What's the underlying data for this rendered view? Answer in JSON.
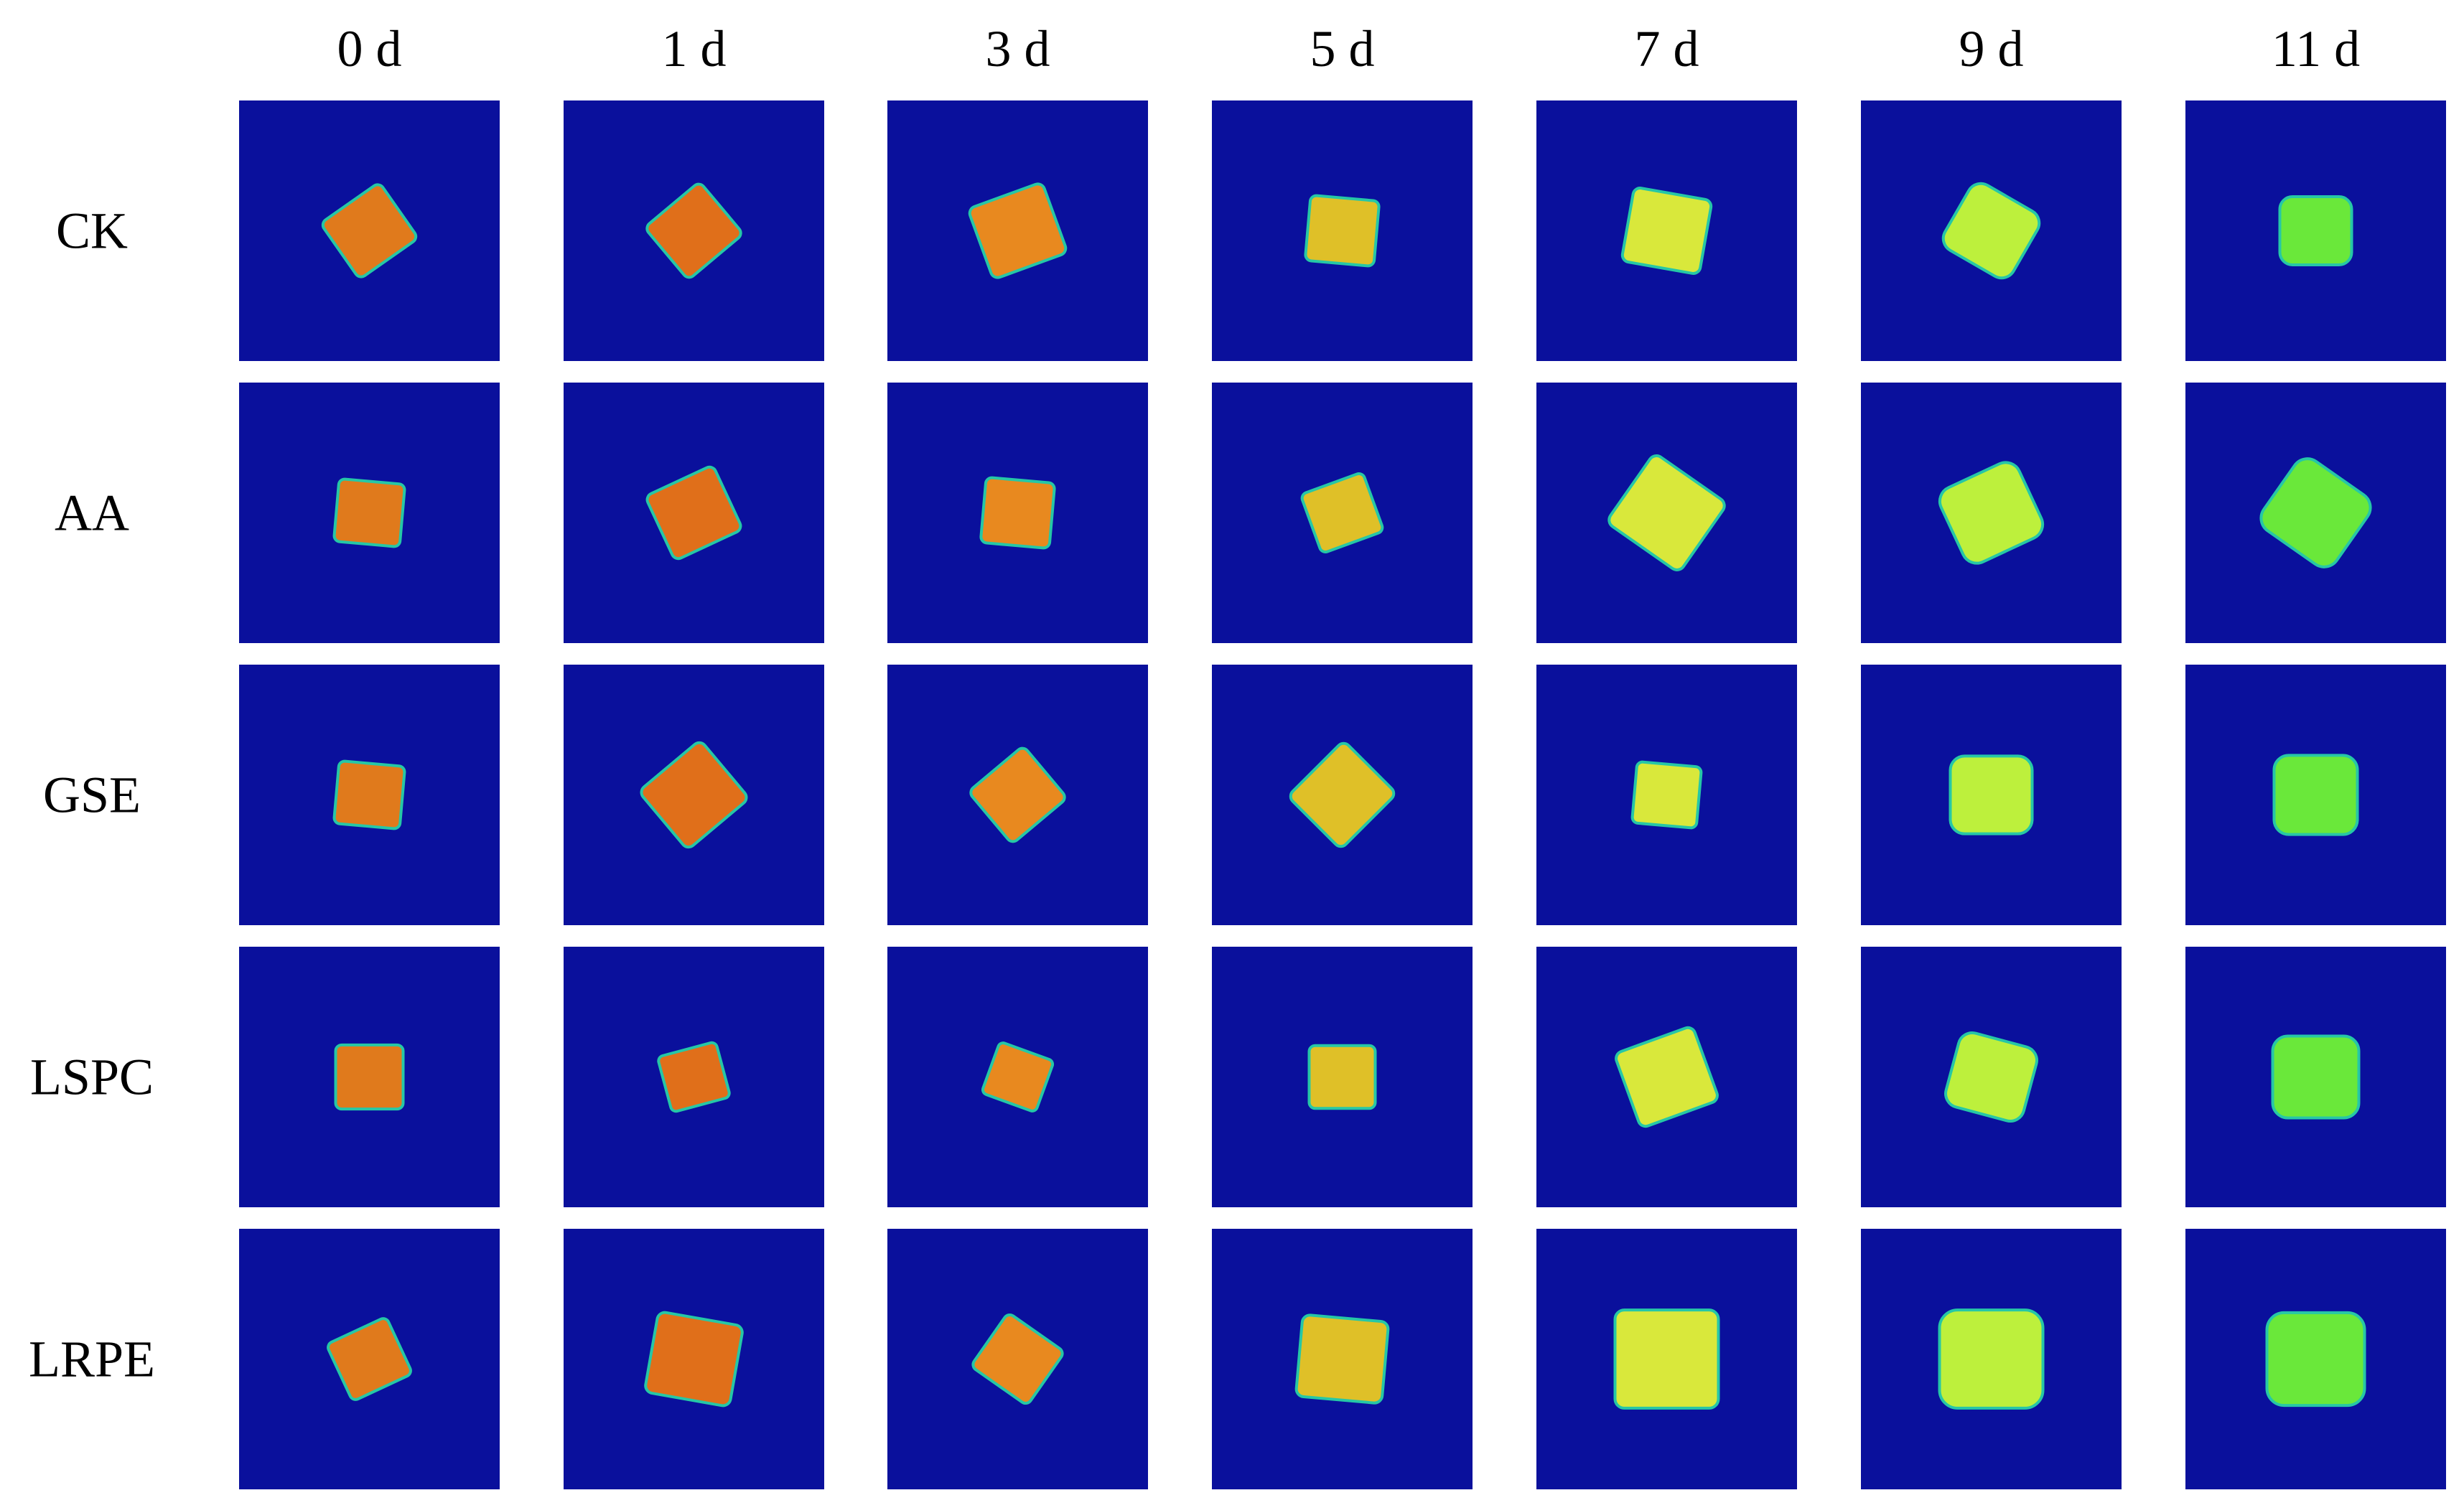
{
  "columns": [
    "0 d",
    "1 d",
    "3 d",
    "5 d",
    "7 d",
    "9 d",
    "11 d"
  ],
  "rows": [
    "CK",
    "AA",
    "GSE",
    "LSPC",
    "LRPE"
  ],
  "panel_background_color": "#0a109c",
  "sample_colors_by_column": [
    "#e07a1c",
    "#e06f1a",
    "#e8891f",
    "#dfc028",
    "#d9e83b",
    "#bdf03c",
    "#6ae83a"
  ],
  "sample_edge_color": "#26c7a6"
}
